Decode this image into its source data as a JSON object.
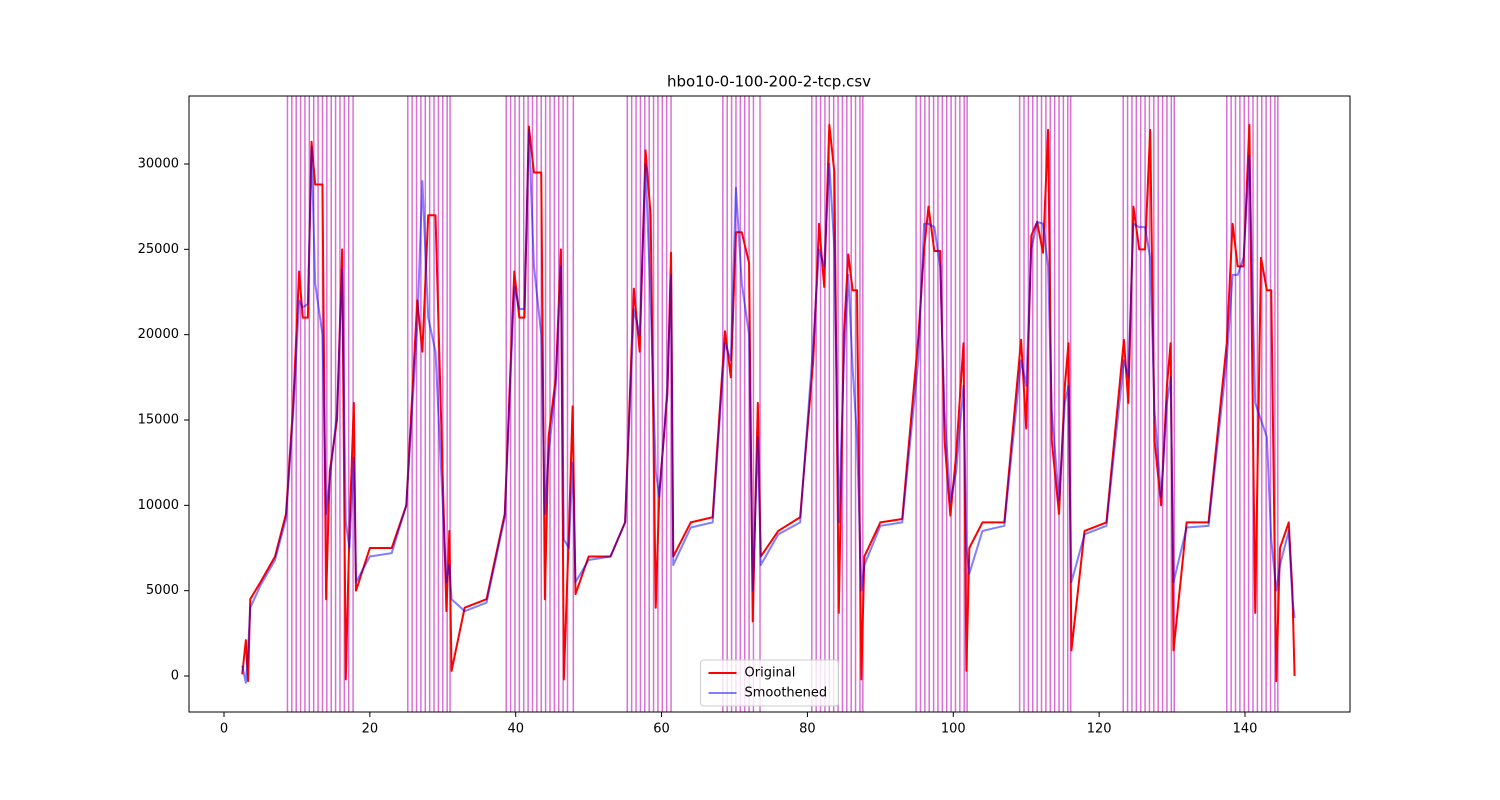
{
  "chart_data": {
    "type": "line",
    "title": "hbo10-0-100-200-2-tcp.csv",
    "x": [
      2.5,
      3,
      3.3,
      3.6,
      5,
      7,
      8.5,
      9.5,
      10.3,
      10.8,
      11.5,
      12,
      12.5,
      13.5,
      14,
      14.5,
      15.5,
      16.2,
      16.7,
      17.2,
      17.8,
      18.1,
      20,
      23,
      25,
      26.5,
      27.2,
      28,
      29,
      30.5,
      30.9,
      31.2,
      33,
      36,
      38.5,
      39.8,
      40.5,
      41.2,
      41.8,
      42.5,
      43.5,
      44,
      44.5,
      45.5,
      46.2,
      46.6,
      47.3,
      47.8,
      48.2,
      50,
      53,
      55,
      56.2,
      57,
      57.8,
      58.5,
      59.2,
      59.7,
      60.8,
      61.3,
      61.6,
      64,
      67,
      68.7,
      69.5,
      70.2,
      71,
      72,
      72.5,
      73.2,
      73.6,
      76,
      79,
      80.8,
      81.6,
      82.3,
      83,
      83.7,
      84.3,
      85,
      85.6,
      86.2,
      86.8,
      87.4,
      87.8,
      90,
      93,
      95.2,
      96,
      96.6,
      97.4,
      98.2,
      98.8,
      99.6,
      100.4,
      101.4,
      101.8,
      102.2,
      104,
      107,
      109.3,
      110,
      110.7,
      111.5,
      112.3,
      113,
      113.5,
      114.5,
      115.3,
      115.8,
      116.2,
      118,
      121,
      123.4,
      124,
      124.7,
      125.5,
      126.3,
      127,
      127.6,
      128.5,
      129.3,
      129.8,
      130.2,
      132,
      135,
      137.5,
      138.3,
      139,
      139.8,
      140.6,
      141.4,
      142.2,
      143,
      143.6,
      144.3,
      144.8,
      146,
      146.5,
      146.8
    ],
    "series": [
      {
        "name": "Original",
        "color": "#ff0000",
        "alpha": 1,
        "values": [
          100,
          2100,
          -300,
          4500,
          5500,
          7000,
          9500,
          16000,
          23700,
          21000,
          21000,
          31300,
          28800,
          28800,
          4500,
          12000,
          15000,
          25000,
          -200,
          8500,
          16000,
          5000,
          7500,
          7500,
          10000,
          22000,
          19000,
          27000,
          27000,
          3800,
          8500,
          300,
          4000,
          4500,
          9500,
          23700,
          21000,
          21000,
          32200,
          29500,
          29500,
          4500,
          14000,
          17500,
          25000,
          -200,
          8500,
          15800,
          4800,
          7000,
          7000,
          9000,
          22700,
          19000,
          30800,
          27000,
          4000,
          10800,
          16500,
          24800,
          7000,
          9000,
          9300,
          20200,
          17500,
          26000,
          26000,
          24200,
          3200,
          16000,
          7000,
          8500,
          9300,
          18500,
          26500,
          22800,
          32300,
          29500,
          3700,
          20000,
          24700,
          22600,
          22600,
          -200,
          7000,
          9000,
          9200,
          19800,
          25000,
          27500,
          24900,
          24900,
          13800,
          9400,
          13000,
          19500,
          300,
          7500,
          9000,
          9000,
          19700,
          14500,
          25800,
          26600,
          24800,
          32000,
          13800,
          9500,
          17000,
          19500,
          1500,
          8500,
          9000,
          19700,
          16000,
          27500,
          25000,
          25000,
          32000,
          13800,
          10000,
          17000,
          19500,
          1500,
          9000,
          9000,
          19500,
          26500,
          24000,
          24000,
          32300,
          3700,
          24500,
          22600,
          22600,
          -300,
          7500,
          9000,
          5000,
          0
        ]
      },
      {
        "name": "Smoothened",
        "color": "#0000ff",
        "alpha": 0.5,
        "values": [
          600,
          -400,
          1500,
          4000,
          5300,
          6800,
          9200,
          15500,
          22000,
          21600,
          21800,
          31000,
          23000,
          20000,
          9500,
          11500,
          15500,
          23800,
          9000,
          7500,
          12800,
          5500,
          7000,
          7200,
          10000,
          20500,
          29000,
          21000,
          19000,
          5500,
          6500,
          4500,
          3800,
          4300,
          9300,
          22800,
          21500,
          21500,
          32000,
          24000,
          20000,
          9500,
          13000,
          17000,
          24000,
          8000,
          7500,
          12500,
          5500,
          6800,
          7000,
          9000,
          21500,
          20000,
          30000,
          22000,
          12000,
          10500,
          17000,
          23500,
          6500,
          8700,
          9000,
          19500,
          18500,
          28600,
          23000,
          20000,
          5000,
          14000,
          6500,
          8300,
          9000,
          19500,
          25000,
          24000,
          30000,
          25000,
          9000,
          18500,
          23500,
          18000,
          14000,
          5000,
          6500,
          8800,
          9000,
          18500,
          26500,
          26500,
          26300,
          24000,
          15500,
          10200,
          12000,
          17000,
          7500,
          6000,
          8500,
          8800,
          18500,
          17000,
          25000,
          26600,
          26500,
          24000,
          15500,
          10300,
          16000,
          17000,
          5500,
          8300,
          8800,
          18500,
          17500,
          26500,
          26300,
          26300,
          24500,
          15500,
          10500,
          16000,
          17500,
          5500,
          8700,
          8800,
          18500,
          23500,
          23500,
          24500,
          30500,
          16000,
          15000,
          14000,
          8000,
          5000,
          6500,
          8500,
          4500,
          3400
        ]
      }
    ],
    "vlines": [
      8.7,
      9.3,
      9.9,
      10.5,
      11.1,
      11.7,
      12.3,
      12.9,
      13.5,
      14.1,
      14.7,
      15.3,
      15.9,
      16.5,
      17.1,
      17.7,
      25.2,
      25.8,
      26.4,
      27,
      27.6,
      28.2,
      28.8,
      29.4,
      30,
      30.6,
      31,
      38.7,
      39.3,
      39.9,
      40.5,
      41.1,
      41.7,
      42.3,
      42.9,
      43.5,
      44.1,
      44.7,
      45.3,
      45.9,
      46.5,
      47.1,
      47.9,
      55.3,
      55.9,
      56.5,
      57.1,
      57.7,
      58.3,
      58.9,
      59.5,
      60.1,
      60.7,
      61.3,
      68.4,
      69,
      69.6,
      70.2,
      70.8,
      71.4,
      72,
      72.6,
      73.5,
      80.6,
      81.2,
      81.8,
      82.4,
      83,
      83.6,
      84.2,
      84.8,
      85.4,
      86,
      86.6,
      87.2,
      87.6,
      94.9,
      95.5,
      96.1,
      96.7,
      97.3,
      97.9,
      98.5,
      99.1,
      99.7,
      100.3,
      100.9,
      101.5,
      101.9,
      109.1,
      109.7,
      110.3,
      110.9,
      111.5,
      112.1,
      112.7,
      113.3,
      113.9,
      114.5,
      115.1,
      115.7,
      116.1,
      123.3,
      123.9,
      124.5,
      125.1,
      125.7,
      126.3,
      126.9,
      127.5,
      128.1,
      128.7,
      129.3,
      129.9,
      130.3,
      137.5,
      138.1,
      138.7,
      139.3,
      139.9,
      140.5,
      141.1,
      141.7,
      142.3,
      142.9,
      143.5,
      144.1,
      144.5
    ],
    "vline_color": "#da70d6",
    "xlim": [
      -4.8,
      154.4
    ],
    "xticks": [
      0,
      20,
      40,
      60,
      80,
      100,
      120,
      140
    ],
    "ylim": [
      -2109,
      33984
    ],
    "yticks": [
      0,
      5000,
      10000,
      15000,
      20000,
      25000,
      30000
    ],
    "legend": "lower center"
  }
}
